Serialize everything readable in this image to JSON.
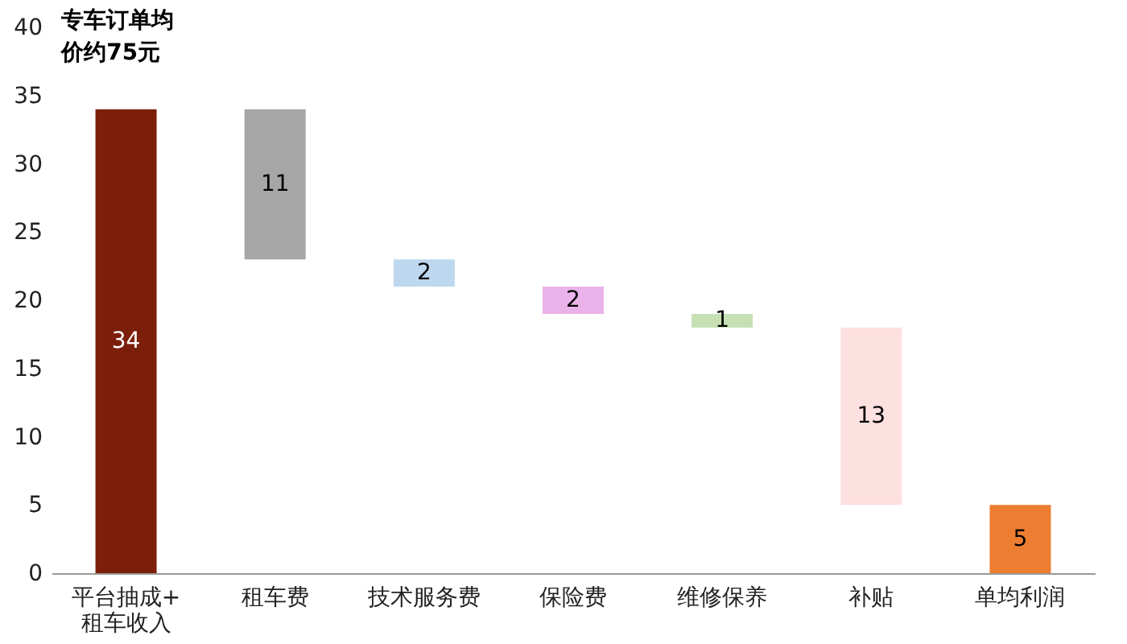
{
  "chart_data": {
    "type": "bar",
    "title": "专车订单均价约75元",
    "categories": [
      "平台抽成+租车收入",
      "租车费",
      "技术服务费",
      "保险费",
      "维修保养",
      "补贴",
      "单均利润"
    ],
    "values": [
      34,
      11,
      2,
      2,
      1,
      13,
      5
    ],
    "base": [
      0,
      23,
      21,
      19,
      18,
      5,
      0
    ],
    "colors": [
      "#7b1f0a",
      "#a6a6a6",
      "#bdd7ee",
      "#e9b3e9",
      "#c6e0b4",
      "#fde0e0",
      "#ed7d31"
    ],
    "ylim": [
      0,
      40
    ],
    "yticks": [
      0,
      5,
      10,
      15,
      20,
      25,
      30,
      35,
      40
    ],
    "data_labels": true,
    "grid": false
  }
}
